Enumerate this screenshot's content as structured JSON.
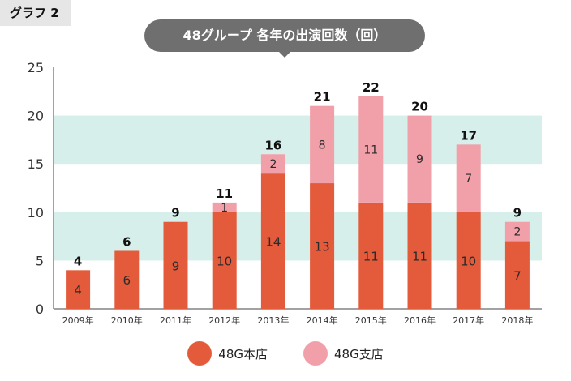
{
  "header": {
    "tag": "グラフ 2"
  },
  "colors": {
    "honten": "#e35b3b",
    "shiten": "#f1a0aa",
    "band": "#d6efea",
    "axis": "#444444",
    "title_bg": "#6f6f6f"
  },
  "chart_data": {
    "type": "bar",
    "stacked": true,
    "title": "48グループ 各年の出演回数（回）",
    "categories": [
      "2009年",
      "2010年",
      "2011年",
      "2012年",
      "2013年",
      "2014年",
      "2015年",
      "2016年",
      "2017年",
      "2018年"
    ],
    "series": [
      {
        "name": "48G本店",
        "values": [
          4,
          6,
          9,
          10,
          14,
          13,
          11,
          11,
          10,
          7
        ]
      },
      {
        "name": "48G支店",
        "values": [
          0,
          0,
          0,
          1,
          2,
          8,
          11,
          9,
          7,
          2
        ]
      }
    ],
    "totals": [
      4,
      6,
      9,
      11,
      16,
      21,
      22,
      20,
      17,
      9
    ],
    "ylim": [
      0,
      25
    ],
    "yticks": [
      0,
      5,
      10,
      15,
      20,
      25
    ],
    "grid": "alternating horizontal bands",
    "legend_position": "bottom-center"
  }
}
